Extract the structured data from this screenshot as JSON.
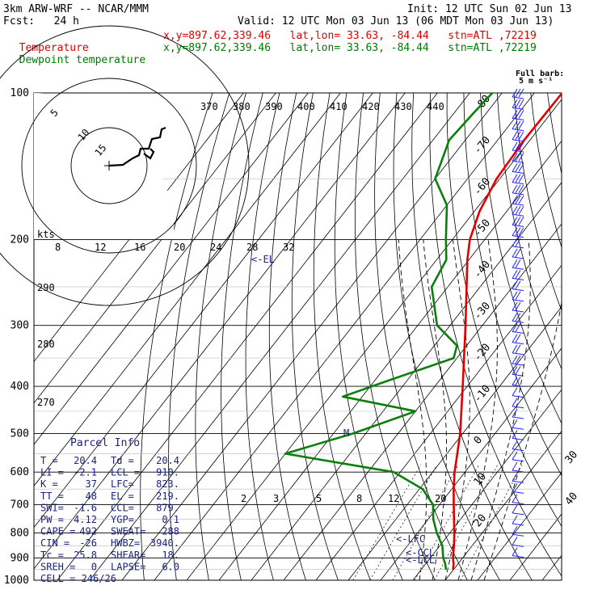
{
  "header": {
    "model": "3km ARW-WRF -- NCAR/MMM",
    "init": "Init: 12 UTC Sun 02 Jun 13",
    "fcst": "Fcst:   24 h",
    "valid": "Valid: 12 UTC Mon 03 Jun 13 (06 MDT Mon 03 Jun 13)",
    "temp_line": {
      "label": "Temperature",
      "loc": "x,y=897.62,339.46   lat,lon= 33.63, -84.44   stn=ATL ,72219"
    },
    "dew_line": {
      "label": "Dewpoint temperature",
      "loc": "x,y=897.62,339.46   lat,lon= 33.63, -84.44   stn=ATL ,72219"
    }
  },
  "full_barb": {
    "line1": "Full barb:",
    "line2": "5 m s⁻¹"
  },
  "parcel_info": {
    "title": "Parcel Info",
    "rows": [
      [
        "T  =",
        "20.4",
        "Td =",
        "20.4"
      ],
      [
        "LI =",
        "-2.1",
        "LCL =",
        "910."
      ],
      [
        "K  =",
        "37",
        "LFC=",
        "823."
      ],
      [
        "TT =",
        "48",
        "EL =",
        "219."
      ],
      [
        "SWI=",
        "-1.6",
        "CCL=",
        "879."
      ],
      [
        "PW =",
        "4.12",
        "YGP=",
        "0.1"
      ],
      [
        "CAPE =",
        "492",
        "SWEAT=",
        "288"
      ],
      [
        "CIN =",
        "-26",
        "HWBZ=",
        "3940."
      ],
      [
        "Tc =",
        "25.8",
        "SHEAR=",
        "18."
      ],
      [
        "SREH =",
        "0",
        "LAPSE=",
        "6.0"
      ],
      [
        "CELL = 246/26",
        "",
        "",
        ""
      ]
    ]
  },
  "level_labels": [
    "LFC",
    "CCL",
    "LCL",
    "EL",
    "M"
  ],
  "hodograph": {
    "rings": [
      "5",
      "10",
      "15"
    ],
    "units": "kts"
  },
  "colors": {
    "temperature": "#e00000",
    "dewpoint": "#0a7f0a",
    "parcel": "#1a237e",
    "barbs": "#1f1fff"
  },
  "chart_data": {
    "type": "line",
    "title": "",
    "xlabel": "",
    "ylabel": "",
    "y_scale": "log-pressure",
    "ylim": [
      1000,
      100
    ],
    "pressure_ticks": [
      "100",
      "200",
      "300",
      "400",
      "500",
      "600",
      "700",
      "800",
      "900",
      "1000"
    ],
    "temp_ticks": [
      "-80",
      "-70",
      "-60",
      "-50",
      "-40",
      "-30",
      "-20",
      "-10",
      "0",
      "10",
      "20",
      "30",
      "40"
    ],
    "theta_labels": [
      "370",
      "380",
      "390",
      "400",
      "410",
      "420",
      "430",
      "440"
    ],
    "theta_side_labels": [
      "290",
      "280",
      "270"
    ],
    "mixing_ratio_labels_upper": [
      "8",
      "12",
      "16",
      "20",
      "24",
      "28",
      "32"
    ],
    "mixing_ratio_labels_lower": [
      "2",
      "3",
      "5",
      "8",
      "12",
      "20"
    ],
    "series": [
      {
        "name": "Temperature",
        "points": [
          {
            "p": 950,
            "t": 19.8
          },
          {
            "p": 925,
            "t": 18.6
          },
          {
            "p": 900,
            "t": 17.0
          },
          {
            "p": 850,
            "t": 14.4
          },
          {
            "p": 800,
            "t": 11.4
          },
          {
            "p": 750,
            "t": 8.0
          },
          {
            "p": 700,
            "t": 4.4
          },
          {
            "p": 650,
            "t": 0.6
          },
          {
            "p": 600,
            "t": -3.2
          },
          {
            "p": 550,
            "t": -6.8
          },
          {
            "p": 500,
            "t": -10.8
          },
          {
            "p": 450,
            "t": -15.8
          },
          {
            "p": 400,
            "t": -21.4
          },
          {
            "p": 350,
            "t": -27.8
          },
          {
            "p": 300,
            "t": -35.2
          },
          {
            "p": 250,
            "t": -44.2
          },
          {
            "p": 220,
            "t": -50.5
          },
          {
            "p": 200,
            "t": -54.6
          },
          {
            "p": 175,
            "t": -58.4
          },
          {
            "p": 150,
            "t": -61.0
          },
          {
            "p": 125,
            "t": -61.8
          },
          {
            "p": 110,
            "t": -61.6
          },
          {
            "p": 100,
            "t": -61.4
          }
        ]
      },
      {
        "name": "Dewpoint temperature",
        "points": [
          {
            "p": 950,
            "t": 17.6
          },
          {
            "p": 925,
            "t": 16.0
          },
          {
            "p": 900,
            "t": 14.0
          },
          {
            "p": 850,
            "t": 10.8
          },
          {
            "p": 800,
            "t": 6.0
          },
          {
            "p": 750,
            "t": 1.6
          },
          {
            "p": 700,
            "t": -2.0
          },
          {
            "p": 650,
            "t": -9.0
          },
          {
            "p": 600,
            "t": -22.0
          },
          {
            "p": 550,
            "t": -60.0
          },
          {
            "p": 500,
            "t": -44.0
          },
          {
            "p": 450,
            "t": -30.0
          },
          {
            "p": 420,
            "t": -56.0
          },
          {
            "p": 390,
            "t": -46.0
          },
          {
            "p": 350,
            "t": -31.0
          },
          {
            "p": 330,
            "t": -33.0
          },
          {
            "p": 300,
            "t": -44.0
          },
          {
            "p": 250,
            "t": -55.0
          },
          {
            "p": 220,
            "t": -57.0
          },
          {
            "p": 200,
            "t": -62.0
          },
          {
            "p": 170,
            "t": -70.0
          },
          {
            "p": 150,
            "t": -80.0
          },
          {
            "p": 125,
            "t": -85.0
          },
          {
            "p": 110,
            "t": -84.0
          },
          {
            "p": 100,
            "t": -83.0
          }
        ]
      }
    ]
  }
}
